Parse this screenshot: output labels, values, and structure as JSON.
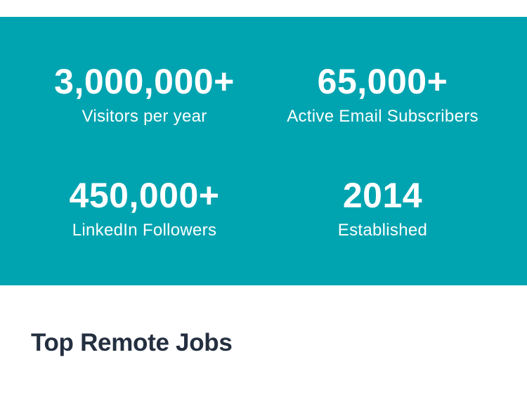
{
  "stats_section": {
    "background_color": "#00A4B0",
    "text_color": "#FFFFFF",
    "stats": [
      {
        "value": "3,000,000+",
        "label": "Visitors per year"
      },
      {
        "value": "65,000+",
        "label": "Active Email Subscribers"
      },
      {
        "value": "450,000+",
        "label": "LinkedIn Followers"
      },
      {
        "value": "2014",
        "label": "Established"
      }
    ]
  },
  "jobs_section": {
    "heading": "Top Remote Jobs",
    "heading_color": "#242F40"
  }
}
